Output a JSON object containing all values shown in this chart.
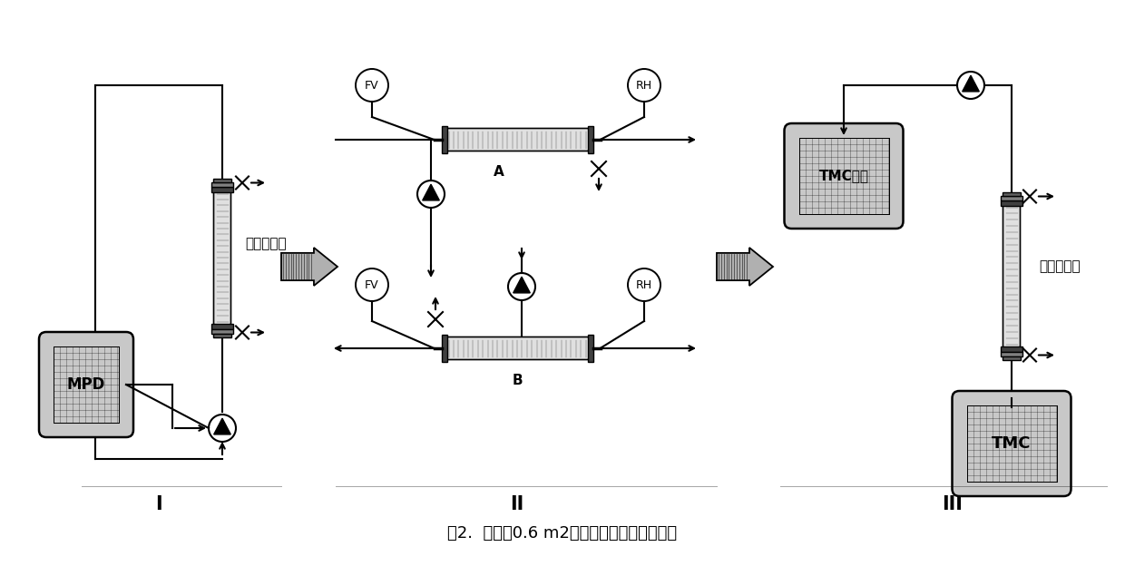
{
  "title": "图2.  应用于0.6 m2组件的涂覆方案的示意图",
  "title_fontsize": 13,
  "bg_color": "#ffffff",
  "label_I": "I",
  "label_II": "II",
  "label_III": "III",
  "text_sealed_cup": "封闭的壳杯",
  "text_MPD": "MPD",
  "text_TMC_solution": "TMC液液",
  "text_TMC": "TMC",
  "text_A": "A",
  "text_B": "B",
  "text_FV": "FV",
  "text_RH": "RH"
}
